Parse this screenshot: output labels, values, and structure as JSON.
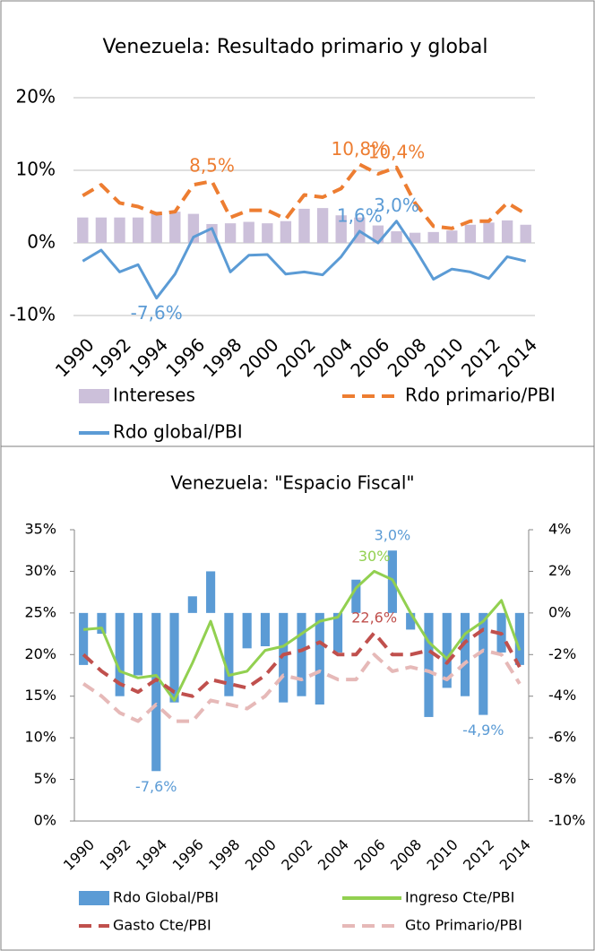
{
  "chart_data": [
    {
      "type": "combo",
      "title": "Venezuela: Resultado primario y global",
      "categories": [
        "1990",
        null,
        "1992",
        null,
        "1994",
        null,
        "1996",
        null,
        "1998",
        null,
        "2000",
        null,
        "2002",
        null,
        "2004",
        null,
        "2006",
        null,
        "2008",
        null,
        "2010",
        null,
        "2012",
        null,
        "2014"
      ],
      "ylim": [
        -10,
        20
      ],
      "yticks": [
        {
          "value": -10,
          "label": "-10%"
        },
        {
          "value": 0,
          "label": "0%"
        },
        {
          "value": 10,
          "label": "10%"
        },
        {
          "value": 20,
          "label": "20%"
        }
      ],
      "grid": true,
      "legend": "bottom",
      "series": [
        {
          "name": "Intereses",
          "kind": "bar",
          "color": "#ccc0da",
          "values": [
            3.5,
            3.5,
            3.5,
            3.5,
            4.3,
            4.3,
            4.0,
            2.6,
            2.7,
            2.9,
            2.7,
            3.0,
            4.7,
            4.8,
            3.8,
            3.5,
            2.4,
            1.6,
            1.4,
            1.5,
            1.7,
            2.5,
            2.8,
            3.1,
            2.5
          ]
        },
        {
          "name": "Rdo primario/PBI",
          "kind": "line",
          "dash": true,
          "color": "#ed7d31",
          "values": [
            6.5,
            8.0,
            5.5,
            5.0,
            4.0,
            4.3,
            8.0,
            8.5,
            3.5,
            4.5,
            4.5,
            3.3,
            6.6,
            6.3,
            7.5,
            10.8,
            9.5,
            10.4,
            5.5,
            2.3,
            2.0,
            3.0,
            3.0,
            5.5,
            4.0
          ],
          "value_labels": [
            null,
            null,
            null,
            null,
            null,
            null,
            null,
            "8,5%",
            null,
            null,
            null,
            null,
            null,
            null,
            null,
            "10,8%",
            null,
            "10,4%",
            null,
            null,
            null,
            null,
            null,
            null,
            null
          ]
        },
        {
          "name": "Rdo global/PBI",
          "kind": "line",
          "dash": false,
          "color": "#5b9bd5",
          "values": [
            -2.5,
            -1.0,
            -4.0,
            -3.0,
            -7.6,
            -4.3,
            0.8,
            2.0,
            -4.0,
            -1.7,
            -1.6,
            -4.3,
            -4.0,
            -4.4,
            -1.9,
            1.6,
            0.0,
            3.0,
            -0.8,
            -5.0,
            -3.6,
            -4.0,
            -4.9,
            -1.9,
            -2.5
          ],
          "value_labels": [
            null,
            null,
            null,
            null,
            "-7,6%",
            null,
            null,
            null,
            null,
            null,
            null,
            null,
            null,
            null,
            null,
            "1,6%",
            null,
            "3,0%",
            null,
            null,
            null,
            null,
            null,
            null,
            null
          ]
        }
      ]
    },
    {
      "type": "combo",
      "title": "Venezuela: \"Espacio Fiscal\"",
      "categories": [
        "1990",
        null,
        "1992",
        null,
        "1994",
        null,
        "1996",
        null,
        "1998",
        null,
        "2000",
        null,
        "2002",
        null,
        "2004",
        null,
        "2006",
        null,
        "2008",
        null,
        "2010",
        null,
        "2012",
        null,
        "2014"
      ],
      "ylim": [
        0,
        35
      ],
      "yticks": [
        {
          "value": 0,
          "label": "0%"
        },
        {
          "value": 5,
          "label": "5%"
        },
        {
          "value": 10,
          "label": "10%"
        },
        {
          "value": 15,
          "label": "15%"
        },
        {
          "value": 20,
          "label": "20%"
        },
        {
          "value": 25,
          "label": "25%"
        },
        {
          "value": 30,
          "label": "30%"
        },
        {
          "value": 35,
          "label": "35%"
        }
      ],
      "y2lim": [
        -10,
        4
      ],
      "y2ticks": [
        {
          "value": -10,
          "label": "-10%"
        },
        {
          "value": -8,
          "label": "-8%"
        },
        {
          "value": -6,
          "label": "-6%"
        },
        {
          "value": -4,
          "label": "-4%"
        },
        {
          "value": -2,
          "label": "-2%"
        },
        {
          "value": 0,
          "label": "0%"
        },
        {
          "value": 2,
          "label": "2%"
        },
        {
          "value": 4,
          "label": "4%"
        }
      ],
      "grid": false,
      "legend": "bottom",
      "series": [
        {
          "name": "Rdo Global/PBI",
          "kind": "bar",
          "axis": "y2",
          "color": "#5b9bd5",
          "values": [
            -2.5,
            -1.0,
            -4.0,
            -3.0,
            -7.6,
            -4.3,
            0.8,
            2.0,
            -4.0,
            -1.7,
            -1.6,
            -4.3,
            -4.0,
            -4.4,
            -1.9,
            1.6,
            0.0,
            3.0,
            -0.8,
            -5.0,
            -3.6,
            -4.0,
            -4.9,
            -1.9,
            -2.5
          ],
          "value_labels": [
            null,
            null,
            null,
            null,
            "-7,6%",
            null,
            null,
            null,
            null,
            null,
            null,
            null,
            null,
            null,
            null,
            null,
            null,
            "3,0%",
            null,
            null,
            null,
            null,
            "-4,9%",
            null,
            null
          ]
        },
        {
          "name": "Ingreso Cte/PBI",
          "kind": "line",
          "dash": false,
          "color": "#92d050",
          "values": [
            23.0,
            23.2,
            18.0,
            17.2,
            17.5,
            14.5,
            19.0,
            24.0,
            17.5,
            18.0,
            20.5,
            21.0,
            22.5,
            24.0,
            24.5,
            28.0,
            30.0,
            29.0,
            25.0,
            21.5,
            19.5,
            22.5,
            24.0,
            26.5,
            20.5
          ],
          "value_labels": [
            null,
            null,
            null,
            null,
            null,
            null,
            null,
            null,
            null,
            null,
            null,
            null,
            null,
            null,
            null,
            null,
            "30%",
            null,
            null,
            null,
            null,
            null,
            null,
            null,
            null
          ]
        },
        {
          "name": "Gasto Cte/PBI",
          "kind": "line",
          "dash": true,
          "color": "#c0504d",
          "values": [
            20.0,
            18.0,
            16.5,
            15.5,
            17.0,
            15.5,
            15.0,
            17.0,
            16.5,
            16.0,
            17.5,
            20.0,
            20.5,
            21.5,
            20.0,
            20.0,
            22.6,
            20.0,
            20.0,
            20.5,
            19.0,
            21.5,
            23.0,
            22.5,
            18.5
          ],
          "value_labels": [
            null,
            null,
            null,
            null,
            null,
            null,
            null,
            null,
            null,
            null,
            null,
            null,
            null,
            null,
            null,
            null,
            "22,6%",
            null,
            null,
            null,
            null,
            null,
            null,
            null,
            null
          ]
        },
        {
          "name": "Gto Primario/PBI",
          "kind": "line",
          "dash": true,
          "color": "#e6b9b8",
          "values": [
            16.5,
            15.0,
            13.0,
            12.0,
            14.0,
            12.0,
            12.0,
            14.5,
            14.0,
            13.5,
            15.0,
            17.5,
            17.0,
            18.0,
            17.0,
            17.0,
            20.0,
            18.0,
            18.5,
            18.0,
            17.0,
            19.0,
            20.5,
            20.0,
            16.5
          ]
        }
      ]
    }
  ]
}
